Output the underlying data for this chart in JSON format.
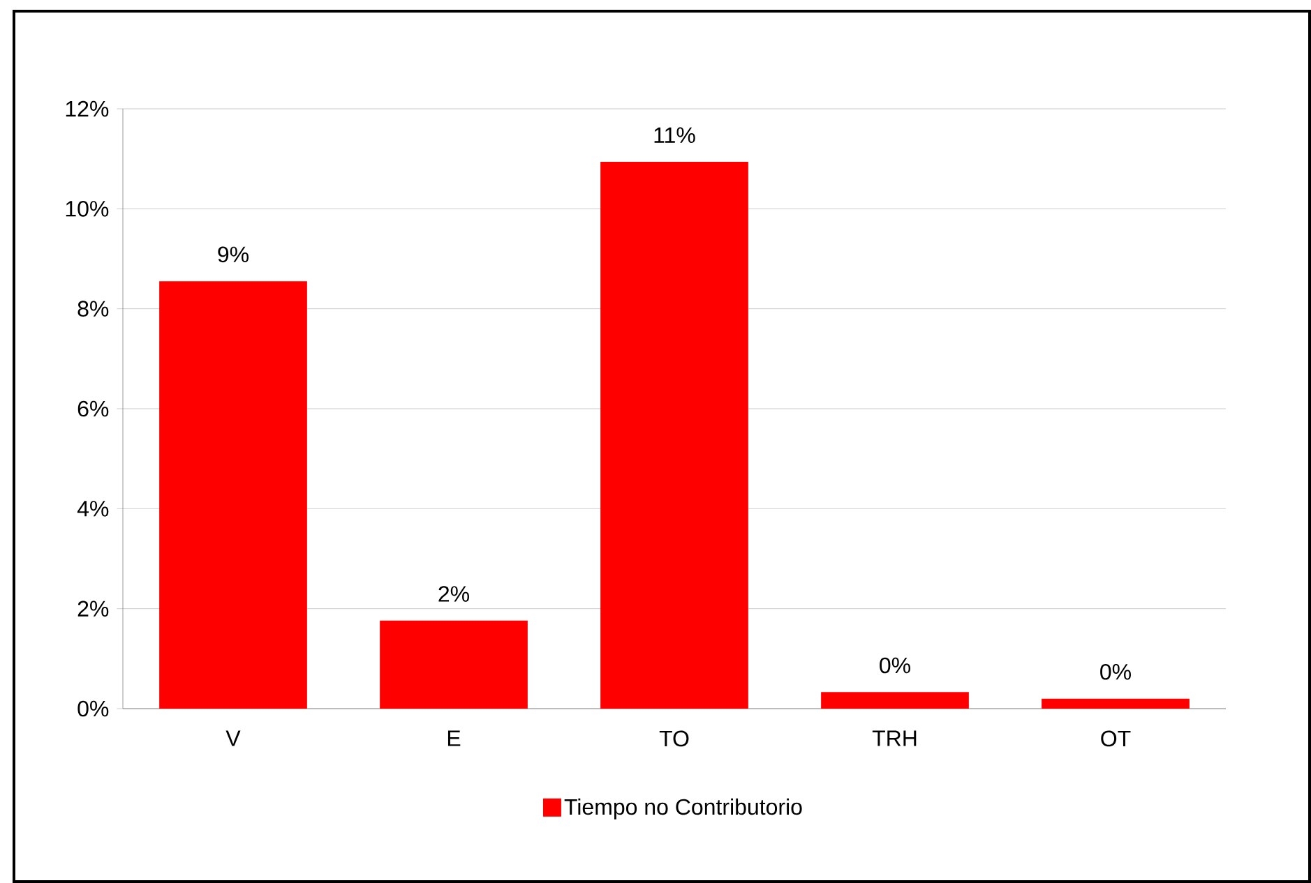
{
  "chart_data": {
    "type": "bar",
    "categories": [
      "V",
      "E",
      "TO",
      "TRH",
      "OT"
    ],
    "series": [
      {
        "name": "Tiempo no Contributorio",
        "color": "#ff0000",
        "values": [
          8.55,
          1.76,
          10.94,
          0.33,
          0.2
        ],
        "value_labels": [
          "9%",
          "2%",
          "11%",
          "0%",
          "0%"
        ]
      }
    ],
    "ylim": [
      0,
      12
    ],
    "yticks": [
      {
        "value": 0,
        "label": "0%"
      },
      {
        "value": 2,
        "label": "2%"
      },
      {
        "value": 4,
        "label": "4%"
      },
      {
        "value": 6,
        "label": "6%"
      },
      {
        "value": 8,
        "label": "8%"
      },
      {
        "value": 10,
        "label": "10%"
      },
      {
        "value": 12,
        "label": "12%"
      }
    ],
    "grid": "y",
    "legend": "bottom"
  }
}
